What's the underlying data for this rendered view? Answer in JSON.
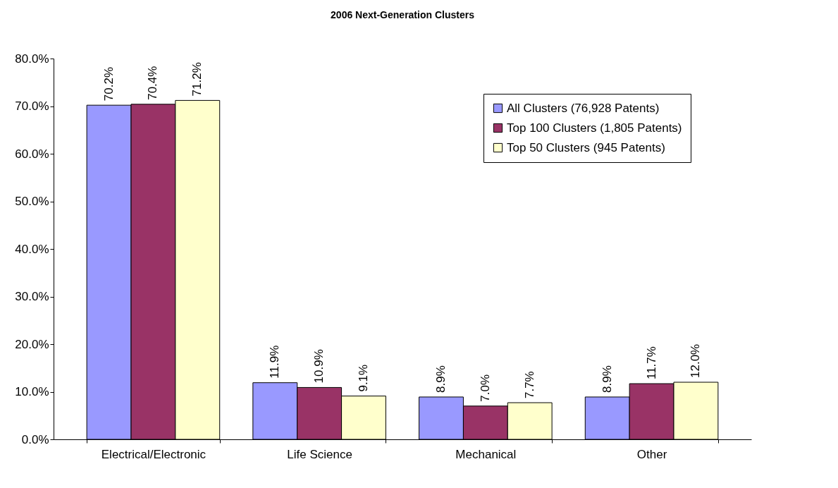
{
  "chart_data": {
    "type": "bar",
    "title": "2006 Next-Generation Clusters",
    "categories": [
      "Electrical/Electronic",
      "Life Science",
      "Mechanical",
      "Other"
    ],
    "series": [
      {
        "name": "All Clusters (76,928 Patents)",
        "color": "#9999ff",
        "values": [
          70.2,
          11.9,
          8.9,
          8.9
        ],
        "value_labels": [
          "70.2%",
          "11.9%",
          "8.9%",
          "8.9%"
        ]
      },
      {
        "name": "Top 100 Clusters (1,805 Patents)",
        "color": "#993366",
        "values": [
          70.4,
          10.9,
          7.0,
          11.7
        ],
        "value_labels": [
          "70.4%",
          "10.9%",
          "7.0%",
          "11.7%"
        ]
      },
      {
        "name": "Top 50 Clusters (945 Patents)",
        "color": "#ffffcc",
        "values": [
          71.2,
          9.1,
          7.7,
          12.0
        ],
        "value_labels": [
          "71.2%",
          "9.1%",
          "7.7%",
          "12.0%"
        ]
      }
    ],
    "ylim": [
      0,
      80
    ],
    "yticks": [
      {
        "value": 0,
        "label": "0.0%"
      },
      {
        "value": 10,
        "label": "10.0%"
      },
      {
        "value": 20,
        "label": "20.0%"
      },
      {
        "value": 30,
        "label": "30.0%"
      },
      {
        "value": 40,
        "label": "40.0%"
      },
      {
        "value": 50,
        "label": "50.0%"
      },
      {
        "value": 60,
        "label": "60.0%"
      },
      {
        "value": 70,
        "label": "70.0%"
      },
      {
        "value": 80,
        "label": "80.0%"
      }
    ],
    "grid": false,
    "legend": "top right"
  }
}
